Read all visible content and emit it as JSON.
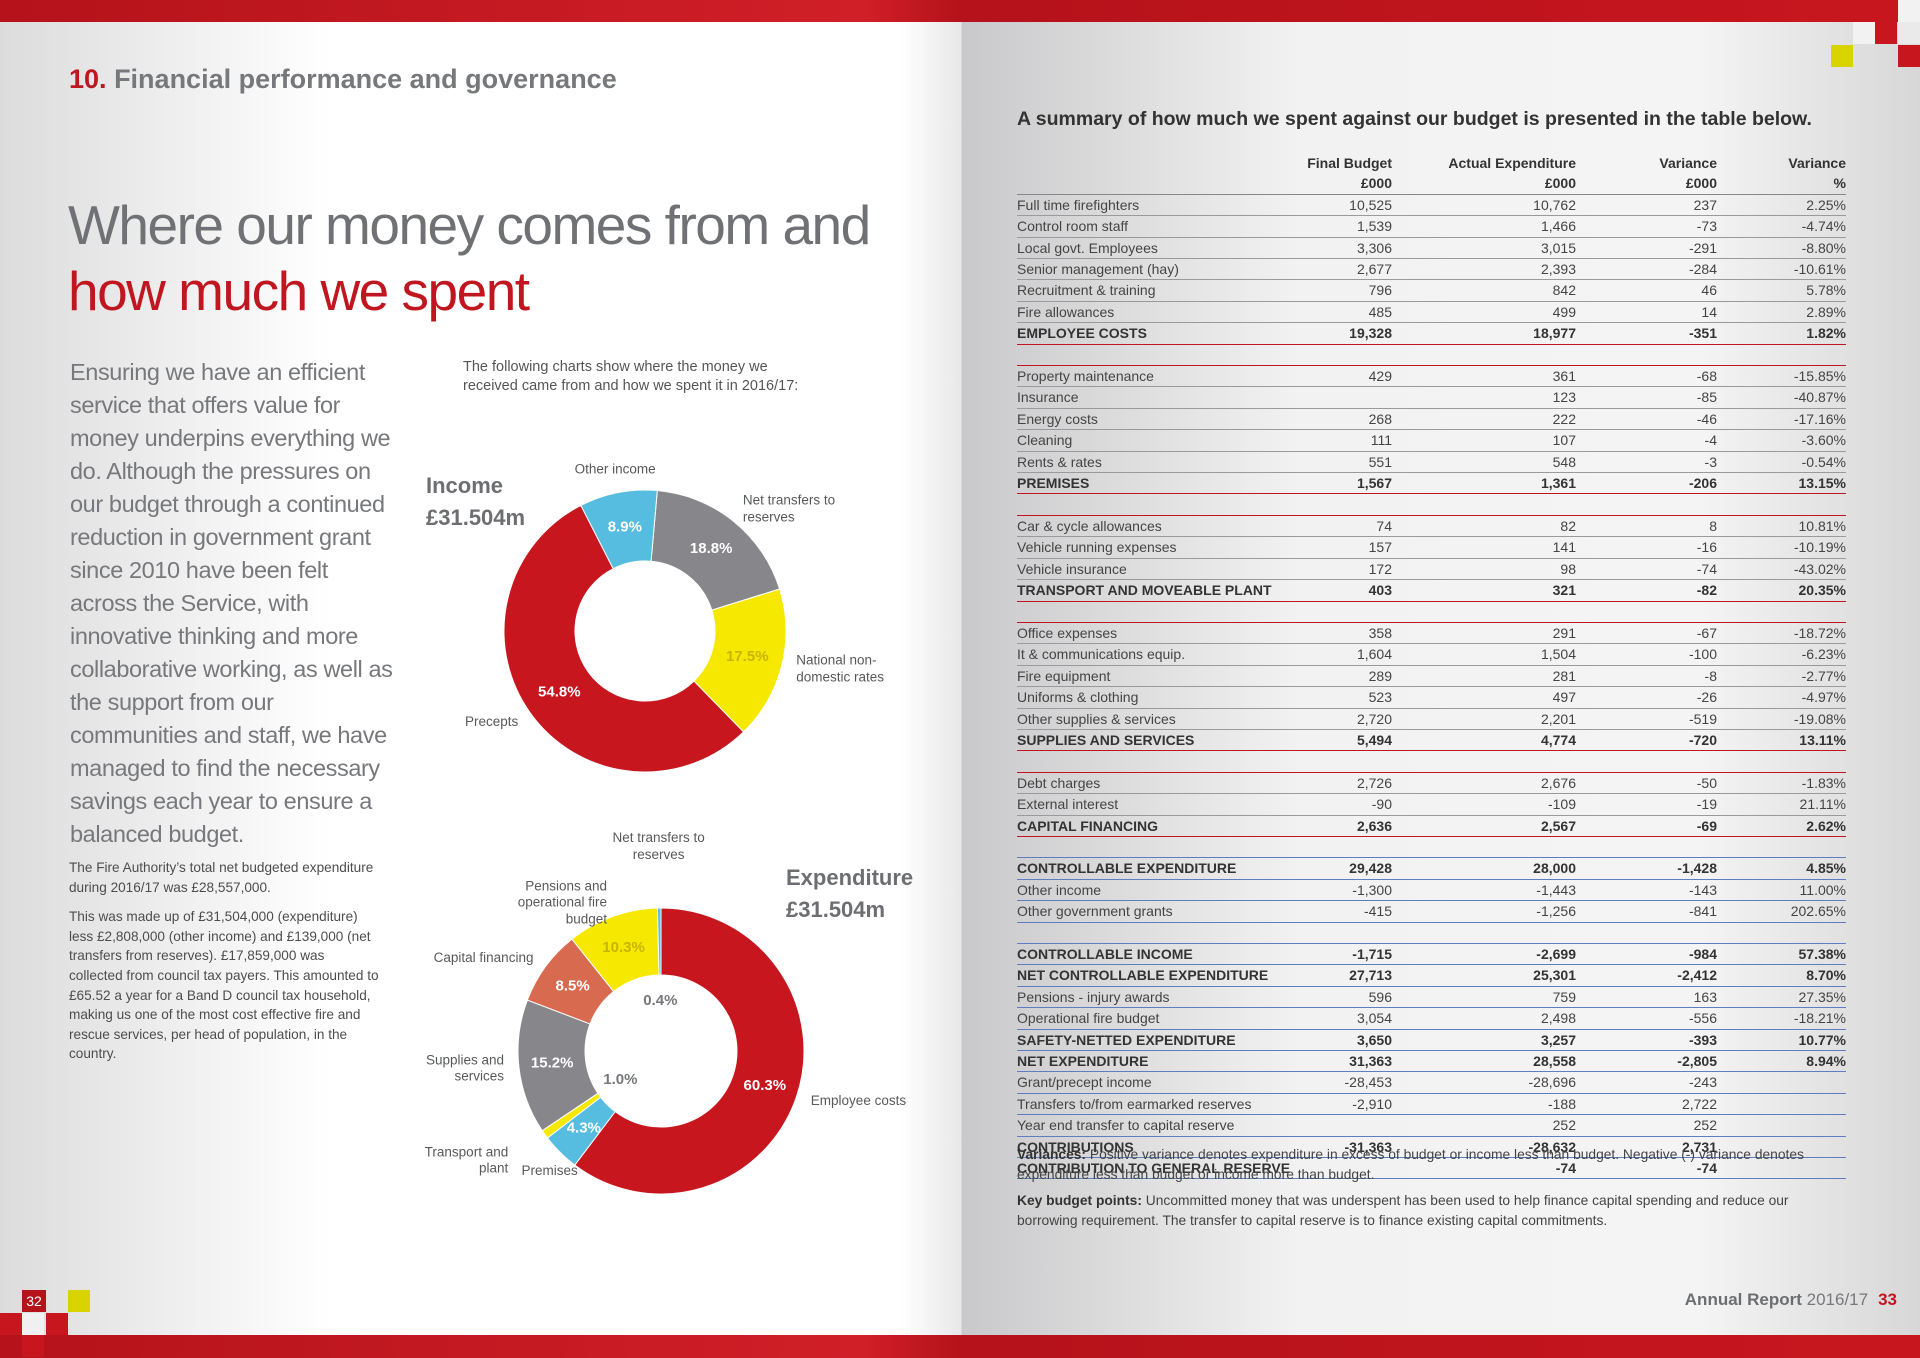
{
  "header": {
    "number": "10.",
    "title": "Financial performance and governance"
  },
  "heading": {
    "line1": "Where our money comes from and",
    "line2": "how much we spent"
  },
  "intro": "Ensuring we have an efficient service that offers value for money underpins everything we do. Although the pressures on our budget through a continued reduction in government grant since 2010 have been felt across the Service, with innovative thinking and more collaborative working, as well as the support from our communities and staff, we have managed to find the necessary savings each year to ensure a balanced budget.",
  "charts_intro": "The following charts show where the money we received came from and how we spent it in 2016/17:",
  "chart_data": [
    {
      "type": "donut",
      "title": "Income",
      "subtitle": "£31.504m",
      "categories": [
        "Net transfers to reserves",
        "National non-domestic rates",
        "Precepts",
        "Other income"
      ],
      "values": [
        18.8,
        17.5,
        54.8,
        8.9
      ],
      "value_labels": [
        "18.8%",
        "17.5%",
        "54.8%",
        "8.9%"
      ],
      "colors": [
        "#86868b",
        "#f7e800",
        "#c8161e",
        "#56bde0"
      ]
    },
    {
      "type": "donut",
      "title": "Expenditure",
      "subtitle": "£31.504m",
      "categories": [
        "Employee costs",
        "Premises",
        "Transport and plant",
        "Supplies and services",
        "Capital financing",
        "Pensions and operational fire budget",
        "Net transfers to reserves"
      ],
      "values": [
        60.3,
        4.3,
        1.0,
        15.2,
        8.5,
        10.3,
        0.4
      ],
      "value_labels": [
        "60.3%",
        "4.3%",
        "1.0%",
        "15.2%",
        "8.5%",
        "10.3%",
        "0.4%"
      ],
      "colors": [
        "#c8161e",
        "#56bde0",
        "#f7e800",
        "#86868b",
        "#d86a50",
        "#f7e800",
        "#56bde0"
      ]
    }
  ],
  "notes_left": [
    "The Fire Authority’s total net budgeted expenditure during 2016/17 was £28,557,000.",
    "This was made up of £31,504,000 (expenditure) less £2,808,000 (other income) and £139,000 (net transfers from reserves).  £17,859,000 was collected from council tax payers. This amounted to £65.52 a year for a Band D council tax household, making us one of the most cost effective fire and rescue services, per head of population, in the country."
  ],
  "summary": "A summary of how much we spent against our budget is presented in the table below.",
  "table": {
    "columns": [
      "Final Budget",
      "Actual Expenditure",
      "Variance",
      "Variance"
    ],
    "units": [
      "£000",
      "£000",
      "£000",
      "%"
    ],
    "groups": [
      {
        "rows": [
          {
            "cells": [
              "Full time firefighters",
              "10,525",
              "10,762",
              "237",
              "2.25%"
            ]
          },
          {
            "cells": [
              "Control room staff",
              "1,539",
              "1,466",
              "-73",
              "-4.74%"
            ]
          },
          {
            "cells": [
              "Local govt. Employees",
              "3,306",
              "3,015",
              "-291",
              "-8.80%"
            ]
          },
          {
            "cells": [
              "Senior management (hay)",
              "2,677",
              "2,393",
              "-284",
              "-10.61%"
            ]
          },
          {
            "cells": [
              "Recruitment & training",
              "796",
              "842",
              "46",
              "5.78%"
            ]
          },
          {
            "cells": [
              "Fire allowances",
              "485",
              "499",
              "14",
              "2.89%"
            ]
          },
          {
            "cells": [
              "EMPLOYEE COSTS",
              "19,328",
              "18,977",
              "-351",
              "1.82%"
            ],
            "bold": true
          }
        ]
      },
      {
        "rows": [
          {
            "cells": [
              "Property maintenance",
              "429",
              "361",
              "-68",
              "-15.85%"
            ]
          },
          {
            "cells": [
              "Insurance",
              null,
              "123",
              "-85",
              "-40.87%"
            ]
          },
          {
            "cells": [
              "Energy costs",
              "268",
              "222",
              "-46",
              "-17.16%"
            ]
          },
          {
            "cells": [
              "Cleaning",
              "111",
              "107",
              "-4",
              "-3.60%"
            ]
          },
          {
            "cells": [
              "Rents & rates",
              "551",
              "548",
              "-3",
              "-0.54%"
            ]
          },
          {
            "cells": [
              "PREMISES",
              "1,567",
              "1,361",
              "-206",
              "13.15%"
            ],
            "bold": true
          }
        ]
      },
      {
        "rows": [
          {
            "cells": [
              "Car & cycle allowances",
              "74",
              "82",
              "8",
              "10.81%"
            ]
          },
          {
            "cells": [
              "Vehicle running expenses",
              "157",
              "141",
              "-16",
              "-10.19%"
            ]
          },
          {
            "cells": [
              "Vehicle insurance",
              "172",
              "98",
              "-74",
              "-43.02%"
            ]
          },
          {
            "cells": [
              "TRANSPORT AND MOVEABLE PLANT",
              "403",
              "321",
              "-82",
              "20.35%"
            ],
            "bold": true
          }
        ]
      },
      {
        "rows": [
          {
            "cells": [
              "Office expenses",
              "358",
              "291",
              "-67",
              "-18.72%"
            ]
          },
          {
            "cells": [
              "It & communications equip.",
              "1,604",
              "1,504",
              "-100",
              "-6.23%"
            ]
          },
          {
            "cells": [
              "Fire equipment",
              "289",
              "281",
              "-8",
              "-2.77%"
            ]
          },
          {
            "cells": [
              "Uniforms & clothing",
              "523",
              "497",
              "-26",
              "-4.97%"
            ]
          },
          {
            "cells": [
              "Other supplies & services",
              "2,720",
              "2,201",
              "-519",
              "-19.08%"
            ]
          },
          {
            "cells": [
              "SUPPLIES AND SERVICES",
              "5,494",
              "4,774",
              "-720",
              "13.11%"
            ],
            "bold": true
          }
        ]
      },
      {
        "rows": [
          {
            "cells": [
              "Debt charges",
              "2,726",
              "2,676",
              "-50",
              "-1.83%"
            ]
          },
          {
            "cells": [
              "External interest",
              "-90",
              "-109",
              "-19",
              "21.11%"
            ]
          },
          {
            "cells": [
              "CAPITAL FINANCING",
              "2,636",
              "2,567",
              "-69",
              "2.62%"
            ],
            "bold": true
          }
        ]
      },
      {
        "rows": [
          {
            "cells": [
              "CONTROLLABLE EXPENDITURE",
              "29,428",
              "28,000",
              "-1,428",
              "4.85%"
            ],
            "bold": true
          },
          {
            "cells": [
              "Other income",
              "-1,300",
              "-1,443",
              "-143",
              "11.00%"
            ]
          },
          {
            "cells": [
              "Other government grants",
              "-415",
              "-1,256",
              "-841",
              "202.65%"
            ]
          }
        ]
      },
      {
        "rows": [
          {
            "cells": [
              "CONTROLLABLE INCOME",
              "-1,715",
              "-2,699",
              "-984",
              "57.38%"
            ],
            "bold": true
          },
          {
            "cells": [
              "NET CONTROLLABLE EXPENDITURE",
              "27,713",
              "25,301",
              "-2,412",
              "8.70%"
            ],
            "bold": true
          },
          {
            "cells": [
              "Pensions - injury awards",
              "596",
              "759",
              "163",
              "27.35%"
            ]
          },
          {
            "cells": [
              "Operational fire budget",
              "3,054",
              "2,498",
              "-556",
              "-18.21%"
            ]
          },
          {
            "cells": [
              "SAFETY-NETTED EXPENDITURE",
              "3,650",
              "3,257",
              "-393",
              "10.77%"
            ],
            "bold": true
          },
          {
            "cells": [
              "NET EXPENDITURE",
              "31,363",
              "28,558",
              "-2,805",
              "8.94%"
            ],
            "bold": true
          },
          {
            "cells": [
              "Grant/precept income",
              "-28,453",
              "-28,696",
              "-243",
              null
            ]
          },
          {
            "cells": [
              "Transfers to/from earmarked reserves",
              "-2,910",
              "-188",
              "2,722",
              null
            ]
          },
          {
            "cells": [
              "Year end transfer to capital reserve",
              null,
              "252",
              "252",
              null
            ]
          },
          {
            "cells": [
              "CONTRIBUTIONS",
              "-31,363",
              "-28,632",
              "2,731",
              null
            ],
            "bold": true
          },
          {
            "cells": [
              "CONTRIBUTION TO GENERAL RESERVE",
              null,
              "-74",
              "-74",
              null
            ],
            "bold": true
          }
        ]
      }
    ]
  },
  "notes_right": [
    {
      "label": "Variances:",
      "text": "Positive variance denotes  expenditure in excess of budget or income less than budget.  Negative (-) variance denotes expenditure less than budget or income more than budget."
    },
    {
      "label": "Key budget points:",
      "text": "Uncommitted money that was underspent has been used to help finance capital spending and reduce our borrowing requirement. The transfer to capital reserve is to finance existing capital commitments."
    }
  ],
  "footer": {
    "left_page": "32",
    "report": "Annual Report",
    "year": "2016/17",
    "right_page": "33"
  }
}
